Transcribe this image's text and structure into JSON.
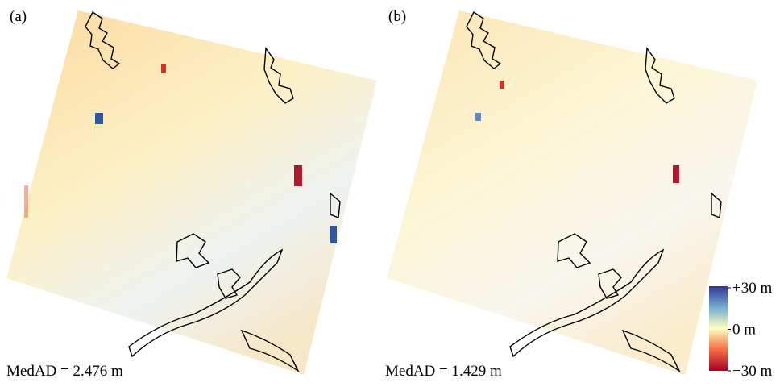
{
  "panels": [
    {
      "label": "(a)",
      "metric": "MedAD = 2.476 m"
    },
    {
      "label": "(b)",
      "metric": "MedAD = 1.429 m"
    }
  ],
  "colorbar": {
    "range": [
      -30,
      30
    ],
    "ticks": [
      {
        "value": 30,
        "label": "+30 m"
      },
      {
        "value": 0,
        "label": "0 m"
      },
      {
        "value": -30,
        "label": "−30 m"
      }
    ]
  }
}
